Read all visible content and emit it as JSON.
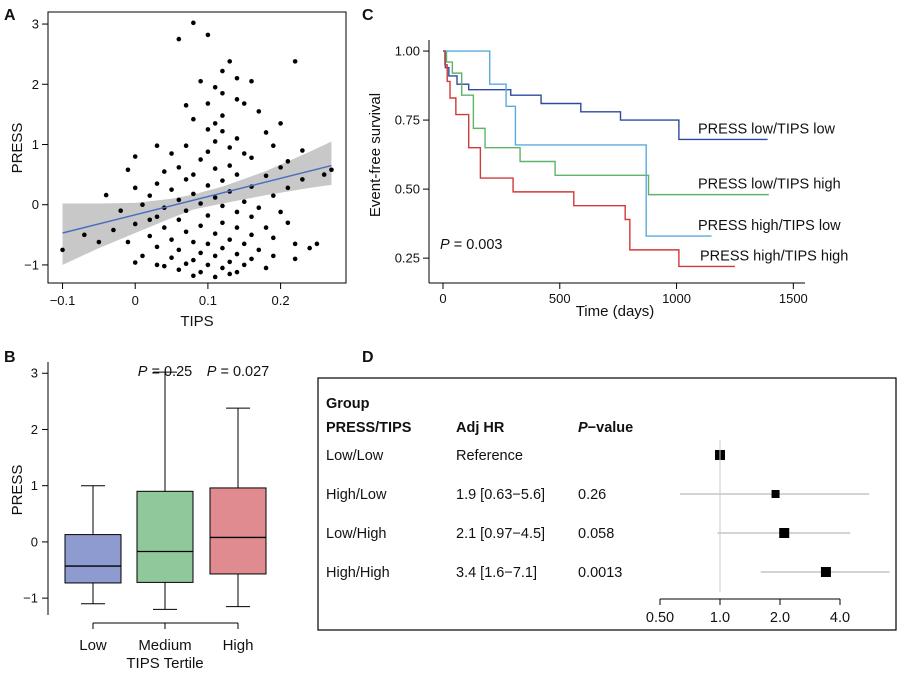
{
  "chart_data": [
    {
      "panel": "A",
      "type": "scatter",
      "xlabel": "TIPS",
      "ylabel": "PRESS",
      "xlim": [
        -0.12,
        0.29
      ],
      "ylim": [
        -1.3,
        3.2
      ],
      "xticks": [
        -0.1,
        0.0,
        0.1,
        0.2
      ],
      "xtick_labels": [
        "−0.1",
        "0",
        "0.1",
        "0.2"
      ],
      "yticks": [
        -1,
        0,
        1,
        2,
        3
      ],
      "ytick_labels": [
        "−1",
        "0",
        "1",
        "2",
        "3"
      ],
      "fit_line": {
        "x": [
          -0.1,
          0.27
        ],
        "y": [
          -0.47,
          0.65
        ],
        "color": "#4a6fbf"
      },
      "confidence_band": {
        "x": [
          -0.1,
          -0.05,
          0.0,
          0.05,
          0.08,
          0.12,
          0.18,
          0.24,
          0.27
        ],
        "lower": [
          -1.0,
          -0.72,
          -0.47,
          -0.22,
          -0.08,
          0.02,
          0.16,
          0.28,
          0.33
        ],
        "upper": [
          0.02,
          0.02,
          0.03,
          0.1,
          0.17,
          0.3,
          0.56,
          0.88,
          1.05
        ],
        "color": "#c8c8c8"
      },
      "points": [
        [
          0.08,
          3.02
        ],
        [
          0.1,
          2.82
        ],
        [
          0.06,
          2.75
        ],
        [
          0.13,
          2.38
        ],
        [
          0.22,
          2.38
        ],
        [
          0.12,
          2.22
        ],
        [
          0.09,
          2.05
        ],
        [
          0.14,
          2.1
        ],
        [
          0.11,
          1.95
        ],
        [
          0.16,
          2.05
        ],
        [
          0.12,
          1.85
        ],
        [
          0.14,
          1.75
        ],
        [
          0.07,
          1.65
        ],
        [
          0.1,
          1.68
        ],
        [
          0.15,
          1.68
        ],
        [
          0.17,
          1.55
        ],
        [
          0.12,
          1.48
        ],
        [
          0.08,
          1.42
        ],
        [
          0.11,
          1.35
        ],
        [
          0.2,
          1.35
        ],
        [
          0.1,
          1.25
        ],
        [
          0.12,
          1.22
        ],
        [
          0.18,
          1.2
        ],
        [
          0.14,
          1.1
        ],
        [
          0.11,
          1.05
        ],
        [
          0.03,
          0.98
        ],
        [
          0.07,
          0.98
        ],
        [
          0.13,
          0.95
        ],
        [
          0.19,
          0.98
        ],
        [
          0.23,
          0.9
        ],
        [
          0.1,
          0.88
        ],
        [
          0.05,
          0.85
        ],
        [
          0.15,
          0.85
        ],
        [
          0.0,
          0.8
        ],
        [
          0.09,
          0.75
        ],
        [
          0.16,
          0.78
        ],
        [
          0.21,
          0.72
        ],
        [
          0.13,
          0.65
        ],
        [
          0.06,
          0.62
        ],
        [
          0.11,
          0.6
        ],
        [
          0.2,
          0.62
        ],
        [
          -0.01,
          0.58
        ],
        [
          0.04,
          0.55
        ],
        [
          0.27,
          0.58
        ],
        [
          0.08,
          0.5
        ],
        [
          0.14,
          0.5
        ],
        [
          0.18,
          0.48
        ],
        [
          0.07,
          0.42
        ],
        [
          0.12,
          0.4
        ],
        [
          0.23,
          0.42
        ],
        [
          0.03,
          0.35
        ],
        [
          0.1,
          0.32
        ],
        [
          0.16,
          0.3
        ],
        [
          0.0,
          0.28
        ],
        [
          0.21,
          0.28
        ],
        [
          0.05,
          0.25
        ],
        [
          0.13,
          0.22
        ],
        [
          0.08,
          0.18
        ],
        [
          -0.04,
          0.16
        ],
        [
          0.02,
          0.15
        ],
        [
          0.19,
          0.15
        ],
        [
          0.11,
          0.12
        ],
        [
          0.06,
          0.08
        ],
        [
          0.15,
          0.05
        ],
        [
          0.09,
          0.02
        ],
        [
          0.01,
          0.0
        ],
        [
          0.12,
          -0.02
        ],
        [
          0.04,
          -0.05
        ],
        [
          0.17,
          -0.05
        ],
        [
          -0.02,
          -0.1
        ],
        [
          0.07,
          -0.1
        ],
        [
          0.14,
          -0.12
        ],
        [
          0.2,
          -0.12
        ],
        [
          0.1,
          -0.18
        ],
        [
          0.03,
          -0.2
        ],
        [
          0.16,
          -0.2
        ],
        [
          0.06,
          -0.25
        ],
        [
          0.12,
          -0.3
        ],
        [
          0.21,
          -0.3
        ],
        [
          0.0,
          -0.32
        ],
        [
          0.09,
          -0.35
        ],
        [
          0.14,
          -0.38
        ],
        [
          0.04,
          -0.38
        ],
        [
          0.18,
          -0.38
        ],
        [
          -0.03,
          -0.42
        ],
        [
          0.07,
          -0.45
        ],
        [
          0.11,
          -0.48
        ],
        [
          0.16,
          -0.5
        ],
        [
          0.02,
          -0.52
        ],
        [
          0.19,
          -0.55
        ],
        [
          0.05,
          -0.58
        ],
        [
          0.13,
          -0.58
        ],
        [
          0.08,
          -0.62
        ],
        [
          -0.01,
          -0.62
        ],
        [
          0.1,
          -0.65
        ],
        [
          0.15,
          -0.65
        ],
        [
          0.22,
          -0.65
        ],
        [
          0.03,
          -0.7
        ],
        [
          0.12,
          -0.72
        ],
        [
          0.06,
          -0.75
        ],
        [
          0.17,
          -0.75
        ],
        [
          0.09,
          -0.8
        ],
        [
          0.14,
          -0.82
        ],
        [
          0.01,
          -0.85
        ],
        [
          0.11,
          -0.85
        ],
        [
          0.05,
          -0.88
        ],
        [
          0.16,
          -0.9
        ],
        [
          0.08,
          -0.92
        ],
        [
          0.13,
          -0.95
        ],
        [
          0.0,
          -0.96
        ],
        [
          0.07,
          -0.98
        ],
        [
          0.1,
          -1.0
        ],
        [
          0.15,
          -1.0
        ],
        [
          0.04,
          -1.02
        ],
        [
          0.12,
          -1.05
        ],
        [
          0.18,
          -1.05
        ],
        [
          0.06,
          -1.08
        ],
        [
          0.09,
          -1.12
        ],
        [
          0.14,
          -1.12
        ],
        [
          0.08,
          -1.18
        ],
        [
          0.11,
          -1.2
        ],
        [
          -0.07,
          -0.5
        ],
        [
          -0.05,
          -0.62
        ],
        [
          -0.1,
          -0.75
        ],
        [
          0.02,
          -0.25
        ],
        [
          0.24,
          -0.72
        ],
        [
          0.25,
          -0.65
        ],
        [
          0.26,
          0.5
        ],
        [
          0.19,
          -0.85
        ],
        [
          0.22,
          -0.9
        ],
        [
          0.03,
          -1.0
        ],
        [
          0.13,
          -1.15
        ]
      ]
    },
    {
      "panel": "B",
      "type": "box",
      "xlabel": "TIPS Tertile",
      "ylabel": "PRESS",
      "ylim": [
        -1.3,
        3.2
      ],
      "yticks": [
        -1,
        0,
        1,
        2,
        3
      ],
      "ytick_labels": [
        "−1",
        "0",
        "1",
        "2",
        "3"
      ],
      "categories": [
        "Low",
        "Medium",
        "High"
      ],
      "boxes": [
        {
          "name": "Low",
          "whisker_low": -1.1,
          "q1": -0.73,
          "median": -0.43,
          "q3": 0.13,
          "whisker_high": 1.0,
          "color": "#8e9bd1",
          "p": ""
        },
        {
          "name": "Medium",
          "whisker_low": -1.2,
          "q1": -0.72,
          "median": -0.17,
          "q3": 0.9,
          "whisker_high": 3.02,
          "color": "#90c89c",
          "p": "P = 0.25"
        },
        {
          "name": "High",
          "whisker_low": -1.15,
          "q1": -0.57,
          "median": 0.08,
          "q3": 0.96,
          "whisker_high": 2.38,
          "color": "#e08b8f",
          "p": "P = 0.027"
        }
      ]
    },
    {
      "panel": "C",
      "type": "line",
      "subtype": "kaplan-meier",
      "xlabel": "Time (days)",
      "ylabel": "Event-free survival",
      "xlim": [
        -60,
        1550
      ],
      "ylim": [
        0.16,
        1.04
      ],
      "xticks": [
        0,
        500,
        1000,
        1500
      ],
      "xtick_labels": [
        "0",
        "500",
        "1000",
        "1500"
      ],
      "yticks": [
        0.25,
        0.5,
        0.75,
        1.0
      ],
      "ytick_labels": [
        "0.25",
        "0.50",
        "0.75",
        "1.00"
      ],
      "annotation": "P = 0.003",
      "series": [
        {
          "name": "PRESS low/TIPS low",
          "color": "#2e4aa0",
          "x": [
            0,
            10,
            25,
            60,
            110,
            290,
            420,
            590,
            760,
            1010,
            1390
          ],
          "y": [
            1.0,
            0.94,
            0.91,
            0.88,
            0.86,
            0.84,
            0.81,
            0.78,
            0.75,
            0.68,
            0.68
          ]
        },
        {
          "name": "PRESS low/TIPS high",
          "color": "#5fb36a",
          "x": [
            0,
            15,
            40,
            80,
            130,
            180,
            330,
            480,
            880,
            1395
          ],
          "y": [
            1.0,
            0.96,
            0.92,
            0.84,
            0.72,
            0.65,
            0.6,
            0.55,
            0.48,
            0.48
          ]
        },
        {
          "name": "PRESS high/TIPS low",
          "color": "#5aaae0",
          "x": [
            0,
            200,
            270,
            310,
            870,
            1150
          ],
          "y": [
            1.0,
            0.88,
            0.8,
            0.66,
            0.33,
            0.33
          ]
        },
        {
          "name": "PRESS high/TIPS high",
          "color": "#d03a3a",
          "x": [
            0,
            8,
            18,
            30,
            55,
            110,
            160,
            300,
            560,
            780,
            800,
            1010,
            1250
          ],
          "y": [
            1.0,
            0.95,
            0.89,
            0.83,
            0.77,
            0.65,
            0.54,
            0.49,
            0.44,
            0.39,
            0.28,
            0.22,
            0.22
          ]
        }
      ]
    },
    {
      "panel": "D",
      "type": "table",
      "subtype": "forest-plot",
      "group_header": "Group",
      "columns": [
        "PRESS/TIPS",
        "Adj HR",
        "P−value"
      ],
      "rows": [
        {
          "group": "Low/Low",
          "hr_text": "Reference",
          "p": "",
          "hr": 1.0,
          "lo": 1.0,
          "hi": 1.0
        },
        {
          "group": "High/Low",
          "hr_text": "1.9 [0.63−5.6]",
          "p": "0.26",
          "hr": 1.9,
          "lo": 0.63,
          "hi": 5.6
        },
        {
          "group": "Low/High",
          "hr_text": "2.1 [0.97−4.5]",
          "p": "0.058",
          "hr": 2.1,
          "lo": 0.97,
          "hi": 4.5
        },
        {
          "group": "High/High",
          "hr_text": "3.4 [1.6−7.1]",
          "p": "0.0013",
          "hr": 3.4,
          "lo": 1.6,
          "hi": 7.1
        }
      ],
      "axis_scale": "log",
      "xlim": [
        0.5,
        4.0
      ],
      "xticks": [
        0.5,
        1.0,
        2.0,
        4.0
      ],
      "xtick_labels": [
        "0.50",
        "1.0",
        "2.0",
        "4.0"
      ],
      "reference_value": 1.0
    }
  ],
  "panel_letters": [
    "A",
    "B",
    "C",
    "D"
  ]
}
